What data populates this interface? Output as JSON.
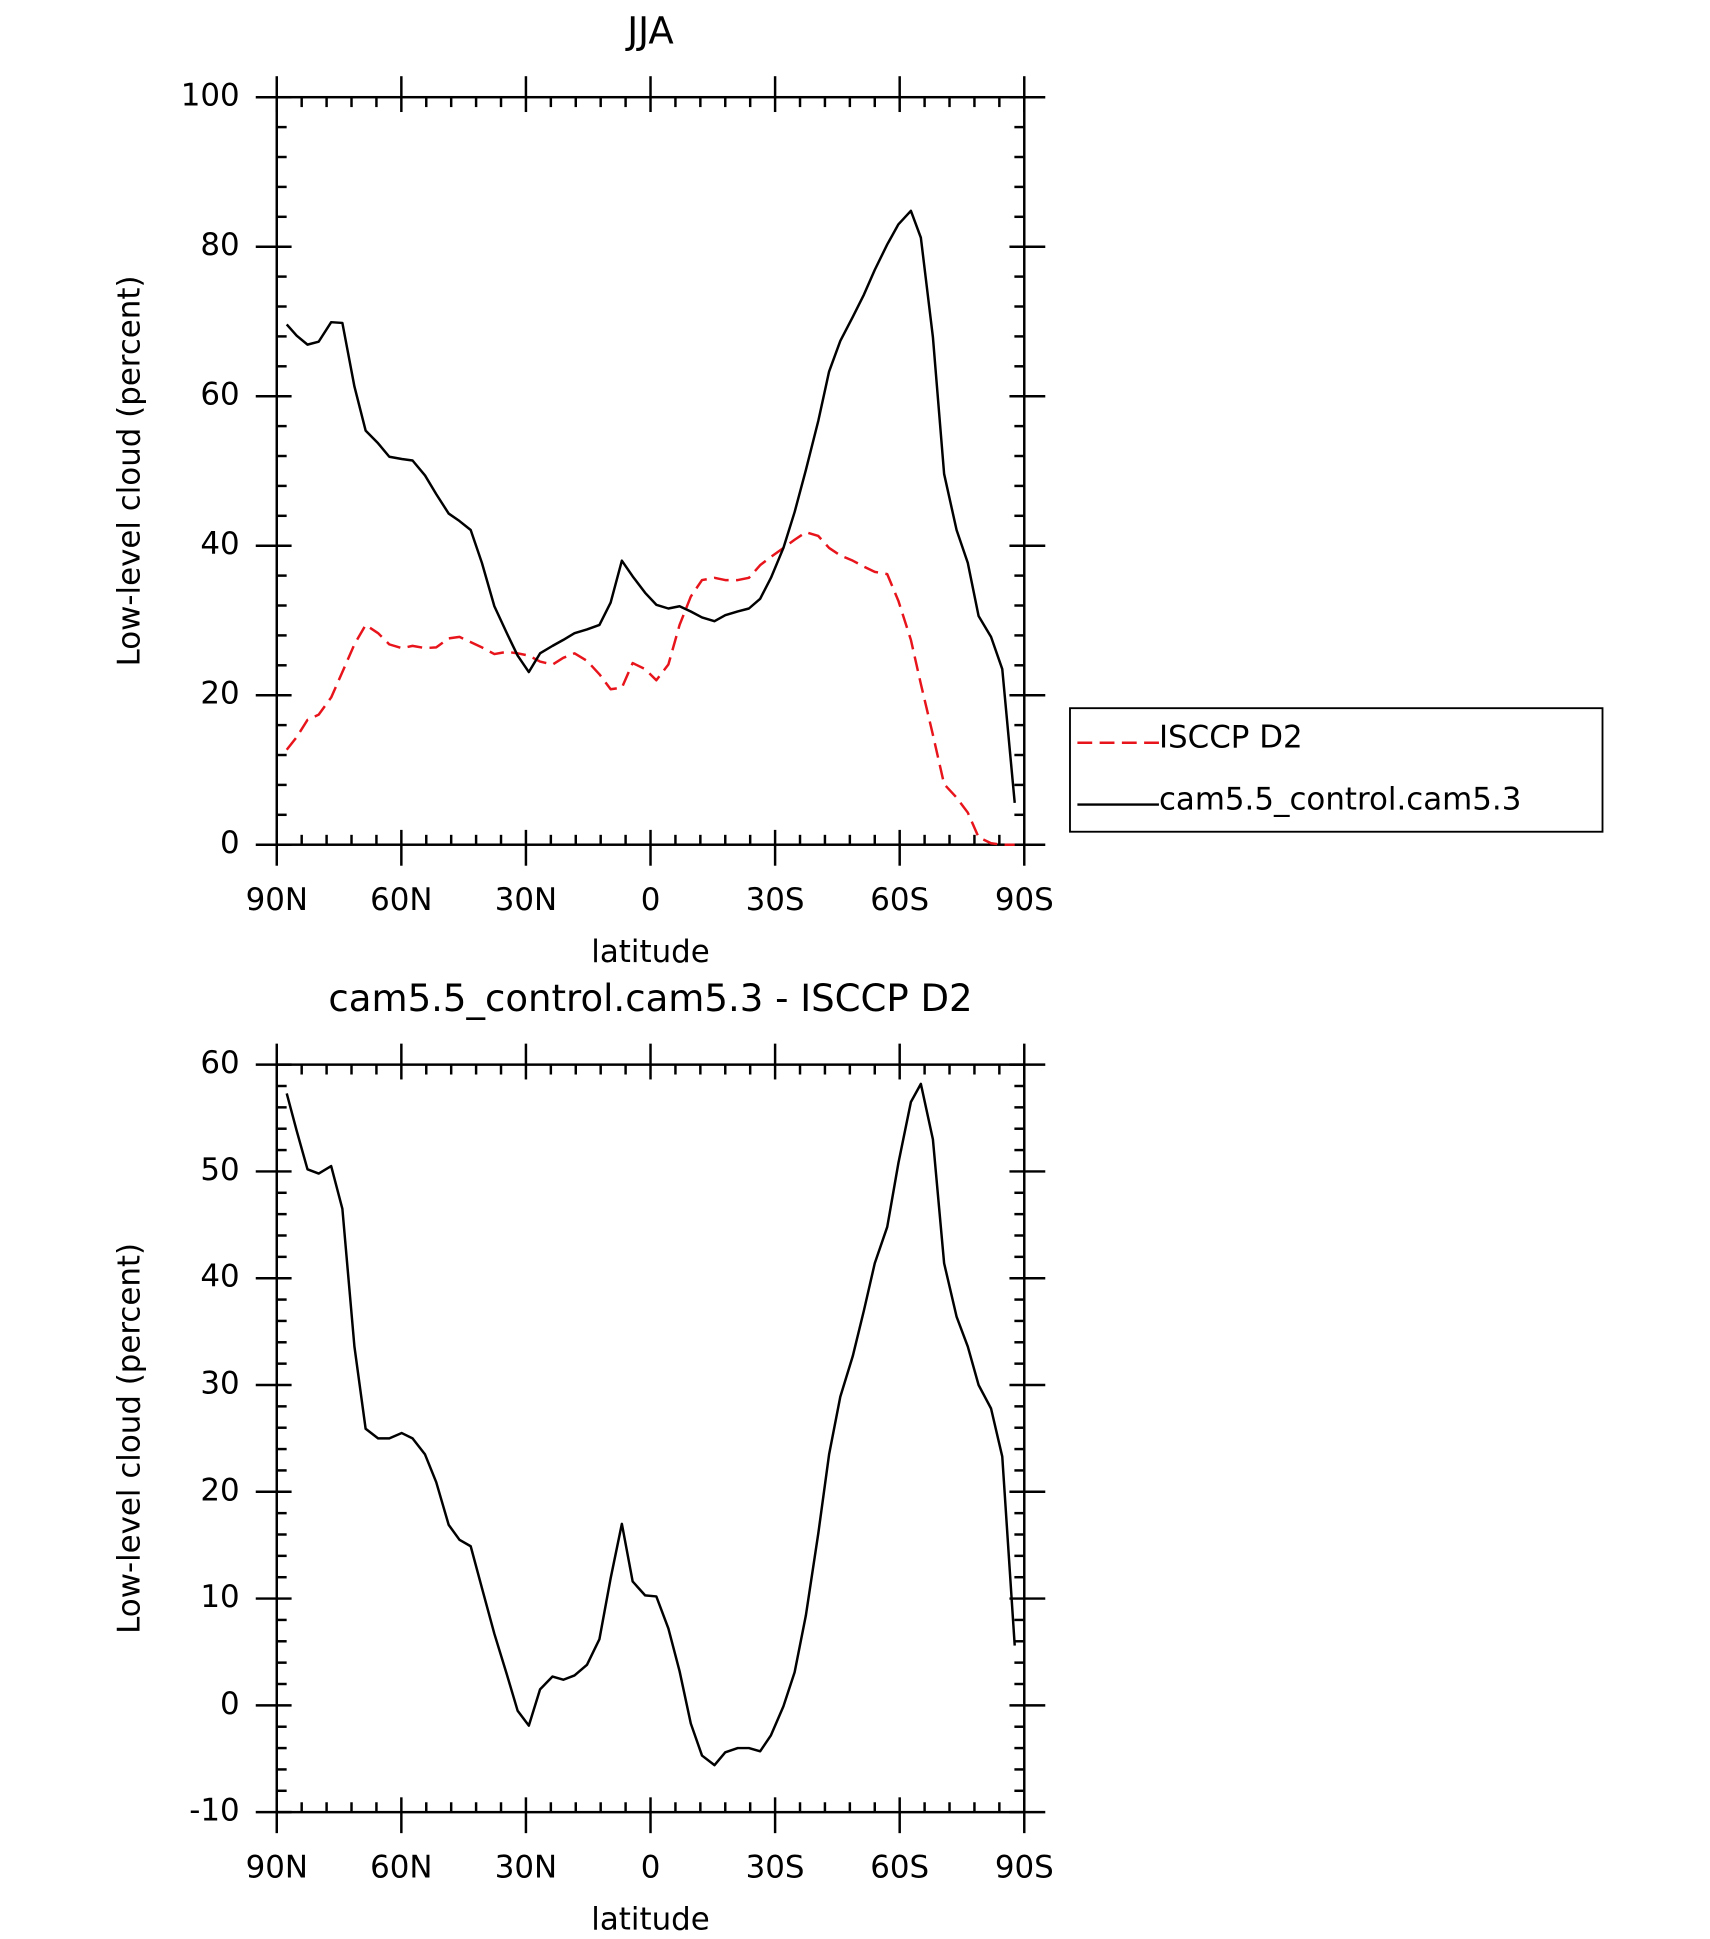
{
  "chart_data": [
    {
      "type": "line",
      "title": "JJA",
      "xlabel": "latitude",
      "ylabel": "Low-level cloud (percent)",
      "xlim": [
        90,
        -90
      ],
      "xticks": [
        {
          "value": 90,
          "label": "90N"
        },
        {
          "value": 60,
          "label": "60N"
        },
        {
          "value": 30,
          "label": "30N"
        },
        0,
        {
          "value": -30,
          "label": "30S"
        },
        {
          "value": -60,
          "label": "60S"
        },
        {
          "value": -90,
          "label": "90S"
        }
      ],
      "ylim": [
        0,
        100
      ],
      "yticks": [
        0,
        20,
        40,
        60,
        80,
        100
      ],
      "legend": "right",
      "x": [
        87.6,
        85.2,
        82.6,
        79.9,
        76.9,
        74.2,
        71.3,
        68.6,
        65.6,
        62.9,
        59.9,
        57.3,
        54.3,
        51.6,
        48.6,
        46.0,
        43.3,
        40.6,
        37.6,
        34.6,
        32.0,
        29.3,
        26.6,
        23.6,
        21.0,
        18.3,
        15.3,
        12.3,
        9.6,
        6.9,
        4.3,
        1.3,
        -1.4,
        -4.3,
        -7.0,
        -9.7,
        -12.4,
        -15.4,
        -18.0,
        -21.0,
        -23.7,
        -26.4,
        -29.0,
        -32.0,
        -34.7,
        -37.4,
        -40.4,
        -43.0,
        -45.7,
        -48.7,
        -51.4,
        -54.0,
        -57.0,
        -59.7,
        -62.7,
        -65.1,
        -68.0,
        -70.7,
        -73.7,
        -76.4,
        -79.0,
        -82.0,
        -84.7,
        -87.7
      ],
      "series": [
        {
          "name": "ISCCP D2",
          "color": "#e8141b",
          "style": "dashed",
          "values": [
            12.7,
            14.4,
            16.7,
            17.4,
            19.7,
            23.1,
            26.8,
            29.4,
            28.3,
            26.8,
            26.3,
            26.6,
            26.3,
            26.4,
            27.6,
            27.8,
            27.1,
            26.4,
            25.5,
            25.8,
            25.6,
            25.3,
            24.5,
            24.1,
            25.0,
            25.6,
            24.6,
            22.8,
            20.8,
            21.0,
            24.3,
            23.5,
            22.0,
            24.1,
            29.4,
            33.2,
            35.4,
            35.7,
            35.4,
            35.4,
            35.7,
            37.4,
            38.5,
            39.7,
            40.8,
            41.8,
            41.3,
            39.7,
            38.7,
            38.0,
            37.2,
            36.5,
            36.2,
            32.6,
            27.4,
            21.5,
            14.7,
            8.1,
            6.3,
            4.3,
            1.0,
            0.2,
            0,
            0
          ]
        },
        {
          "name": "cam5.5_control.cam5.3",
          "color": "#000000",
          "style": "solid",
          "values": [
            69.6,
            68.1,
            66.9,
            67.3,
            69.9,
            69.8,
            61.3,
            55.4,
            53.7,
            51.9,
            51.6,
            51.4,
            49.4,
            46.9,
            44.3,
            43.3,
            42.1,
            37.7,
            31.9,
            28.3,
            25.3,
            23.1,
            25.6,
            26.6,
            27.4,
            28.3,
            28.8,
            29.4,
            32.4,
            38.0,
            35.9,
            33.7,
            32.1,
            31.6,
            31.9,
            31.2,
            30.4,
            29.9,
            30.7,
            31.2,
            31.6,
            32.9,
            35.7,
            39.7,
            44.5,
            50.1,
            56.7,
            63.3,
            67.4,
            70.6,
            73.6,
            76.9,
            80.3,
            83.0,
            84.8,
            81.2,
            67.9,
            49.6,
            42.1,
            37.7,
            30.6,
            27.8,
            23.5,
            5.6
          ]
        }
      ]
    },
    {
      "type": "line",
      "title": "cam5.5_control.cam5.3 - ISCCP D2",
      "xlabel": "latitude",
      "ylabel": "Low-level cloud (percent)",
      "xlim": [
        90,
        -90
      ],
      "xticks": [
        {
          "value": 90,
          "label": "90N"
        },
        {
          "value": 60,
          "label": "60N"
        },
        {
          "value": 30,
          "label": "30N"
        },
        0,
        {
          "value": -30,
          "label": "30S"
        },
        {
          "value": -60,
          "label": "60S"
        },
        {
          "value": -90,
          "label": "90S"
        }
      ],
      "ylim": [
        -10,
        60
      ],
      "yticks": [
        -10,
        0,
        10,
        20,
        30,
        40,
        50,
        60
      ],
      "x": [
        87.6,
        85.2,
        82.6,
        79.9,
        76.9,
        74.2,
        71.3,
        68.6,
        65.6,
        62.9,
        59.9,
        57.3,
        54.3,
        51.6,
        48.6,
        46.0,
        43.3,
        40.6,
        37.6,
        34.6,
        32.0,
        29.3,
        26.6,
        23.6,
        21.0,
        18.3,
        15.3,
        12.3,
        9.6,
        6.9,
        4.3,
        1.3,
        -1.4,
        -4.3,
        -7.0,
        -9.7,
        -12.4,
        -15.4,
        -18.0,
        -21.0,
        -23.7,
        -26.4,
        -29.0,
        -32.0,
        -34.7,
        -37.4,
        -40.4,
        -43.0,
        -45.7,
        -48.7,
        -51.4,
        -54.0,
        -57.0,
        -59.7,
        -62.7,
        -65.1,
        -68.0,
        -70.7,
        -73.7,
        -76.4,
        -79.0,
        -82.0,
        -84.7,
        -87.7
      ],
      "series": [
        {
          "color": "#000000",
          "style": "solid",
          "values": [
            57.3,
            53.8,
            50.2,
            49.8,
            50.5,
            46.5,
            33.6,
            25.9,
            25.0,
            25.0,
            25.5,
            25.0,
            23.5,
            20.9,
            16.9,
            15.5,
            14.9,
            11.0,
            6.7,
            2.9,
            -0.5,
            -1.9,
            1.5,
            2.7,
            2.4,
            2.8,
            3.8,
            6.2,
            11.9,
            17.0,
            11.6,
            10.3,
            10.2,
            7.2,
            3.2,
            -1.7,
            -4.7,
            -5.6,
            -4.4,
            -4.0,
            -4.0,
            -4.3,
            -2.8,
            -0.1,
            3.1,
            8.4,
            16.1,
            23.5,
            28.9,
            32.7,
            37.0,
            41.4,
            44.8,
            50.8,
            56.5,
            58.2,
            53.0,
            41.4,
            36.4,
            33.6,
            30.0,
            27.8,
            23.3,
            5.6
          ]
        }
      ]
    }
  ]
}
